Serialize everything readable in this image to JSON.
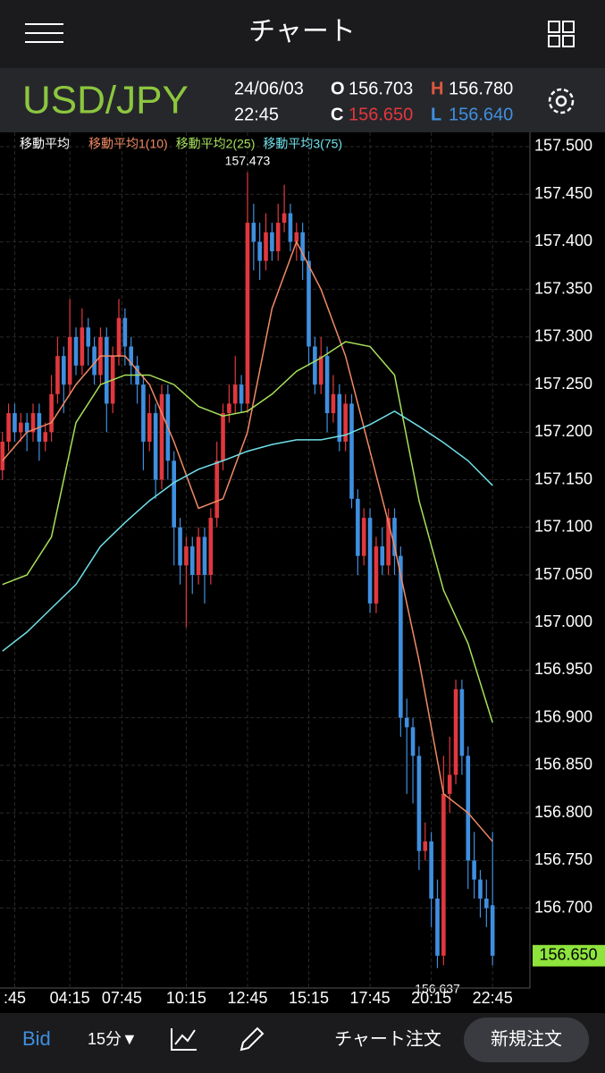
{
  "header": {
    "title": "チャート",
    "symbol": "USD/JPY",
    "date": "24/06/03",
    "time": "22:45",
    "o_label": "O",
    "o_value": "156.703",
    "h_label": "H",
    "h_value": "156.780",
    "c_label": "C",
    "c_value": "156.650",
    "l_label": "L",
    "l_value": "156.640"
  },
  "chart_data": {
    "type": "candlestick",
    "legend_title": "移動平均",
    "last_price_label": "156.650",
    "xlim": [
      -0.4,
      86.1
    ],
    "ylim": [
      156.616,
      157.515
    ],
    "xticks": [
      {
        "value": 2,
        "label": ":45"
      },
      {
        "value": 11,
        "label": "04:15"
      },
      {
        "value": 19.5,
        "label": "07:45"
      },
      {
        "value": 30,
        "label": "10:15"
      },
      {
        "value": 40,
        "label": "12:45"
      },
      {
        "value": 50,
        "label": "15:15"
      },
      {
        "value": 60,
        "label": "17:45"
      },
      {
        "value": 70,
        "label": "20:15"
      },
      {
        "value": 80,
        "label": "22:45"
      }
    ],
    "yticks": [
      {
        "value": 156.7,
        "label": "156.700"
      },
      {
        "value": 156.75,
        "label": "156.750"
      },
      {
        "value": 156.8,
        "label": "156.800"
      },
      {
        "value": 156.85,
        "label": "156.850"
      },
      {
        "value": 156.9,
        "label": "156.900"
      },
      {
        "value": 156.95,
        "label": "156.950"
      },
      {
        "value": 157,
        "label": "157.000"
      },
      {
        "value": 157.05,
        "label": "157.050"
      },
      {
        "value": 157.1,
        "label": "157.100"
      },
      {
        "value": 157.15,
        "label": "157.150"
      },
      {
        "value": 157.2,
        "label": "157.200"
      },
      {
        "value": 157.25,
        "label": "157.250"
      },
      {
        "value": 157.3,
        "label": "157.300"
      },
      {
        "value": 157.35,
        "label": "157.350"
      },
      {
        "value": 157.4,
        "label": "157.400"
      },
      {
        "value": 157.45,
        "label": "157.450"
      },
      {
        "value": 157.5,
        "label": "157.500"
      }
    ],
    "grid": true,
    "up_color": "#e0383e",
    "down_color": "#3f8fe0",
    "open": [
      157.16,
      157.19,
      157.22,
      157.2,
      157.21,
      157.2,
      157.22,
      157.19,
      157.2,
      157.24,
      157.28,
      157.25,
      157.3,
      157.27,
      157.31,
      157.29,
      157.26,
      157.3,
      157.23,
      157.28,
      157.32,
      157.29,
      157.27,
      157.25,
      157.19,
      157.22,
      157.15,
      157.24,
      157.17,
      157.1,
      157.06,
      157.08,
      157.05,
      157.09,
      157.05,
      157.11,
      157.17,
      157.22,
      157.23,
      157.25,
      157.23,
      157.42,
      157.4,
      157.38,
      157.41,
      157.39,
      157.42,
      157.43,
      157.4,
      157.41,
      157.38,
      157.29,
      157.25,
      157.28,
      157.22,
      157.24,
      157.19,
      157.23,
      157.13,
      157.07,
      157.11,
      157.02,
      157.08,
      157.06,
      157.11,
      157.07,
      156.9,
      156.89,
      156.86,
      156.76,
      156.77,
      156.71,
      156.65,
      156.82,
      156.84,
      156.93,
      156.86,
      156.75,
      156.73,
      156.71,
      156.703
    ],
    "high": [
      157.2,
      157.23,
      157.23,
      157.22,
      157.22,
      157.23,
      157.23,
      157.21,
      157.26,
      157.3,
      157.29,
      157.34,
      157.31,
      157.33,
      157.32,
      157.3,
      157.31,
      157.31,
      157.29,
      157.34,
      157.33,
      157.3,
      157.28,
      157.26,
      157.24,
      157.23,
      157.25,
      157.25,
      157.18,
      157.11,
      157.09,
      157.09,
      157.1,
      157.1,
      157.12,
      157.19,
      157.23,
      157.25,
      157.28,
      157.26,
      157.473,
      157.44,
      157.42,
      157.43,
      157.42,
      157.44,
      157.46,
      157.44,
      157.42,
      157.42,
      157.39,
      157.3,
      157.3,
      157.29,
      157.26,
      157.25,
      157.24,
      157.24,
      157.14,
      157.12,
      157.12,
      157.09,
      157.1,
      157.12,
      157.12,
      157.08,
      156.92,
      156.9,
      156.87,
      156.79,
      156.78,
      156.73,
      156.86,
      156.88,
      156.94,
      156.94,
      156.87,
      156.78,
      156.74,
      156.73,
      156.78
    ],
    "low": [
      157.15,
      157.18,
      157.19,
      157.19,
      157.18,
      157.19,
      157.17,
      157.18,
      157.19,
      157.23,
      157.22,
      157.24,
      157.26,
      157.26,
      157.27,
      157.25,
      157.25,
      157.2,
      157.22,
      157.27,
      157.27,
      157.25,
      157.23,
      157.16,
      157.18,
      157.13,
      157.14,
      157.15,
      157.06,
      157.04,
      156.995,
      157.03,
      157.04,
      157.02,
      157.04,
      157.1,
      157.16,
      157.21,
      157.22,
      157.22,
      157.22,
      157.37,
      157.36,
      157.37,
      157.38,
      157.38,
      157.41,
      157.39,
      157.38,
      157.36,
      157.27,
      157.24,
      157.24,
      157.2,
      157.21,
      157.18,
      157.18,
      157.12,
      157.05,
      157.06,
      157.01,
      157.01,
      157.05,
      157.05,
      157.05,
      156.88,
      156.82,
      156.81,
      156.74,
      156.75,
      156.68,
      156.637,
      156.64,
      156.8,
      156.83,
      156.84,
      156.72,
      156.71,
      156.69,
      156.68,
      156.64
    ],
    "close": [
      157.19,
      157.22,
      157.2,
      157.21,
      157.2,
      157.22,
      157.19,
      157.2,
      157.24,
      157.28,
      157.25,
      157.3,
      157.27,
      157.31,
      157.29,
      157.26,
      157.3,
      157.23,
      157.28,
      157.32,
      157.29,
      157.27,
      157.25,
      157.19,
      157.22,
      157.15,
      157.24,
      157.17,
      157.1,
      157.06,
      157.08,
      157.05,
      157.09,
      157.05,
      157.11,
      157.17,
      157.22,
      157.23,
      157.25,
      157.23,
      157.42,
      157.4,
      157.38,
      157.41,
      157.39,
      157.42,
      157.43,
      157.4,
      157.41,
      157.38,
      157.29,
      157.25,
      157.28,
      157.22,
      157.24,
      157.19,
      157.23,
      157.13,
      157.07,
      157.11,
      157.02,
      157.08,
      157.06,
      157.11,
      157.07,
      156.9,
      156.89,
      156.86,
      156.76,
      156.77,
      156.71,
      156.65,
      156.82,
      156.84,
      156.93,
      156.86,
      156.75,
      156.73,
      156.71,
      156.7,
      156.65
    ],
    "series": [
      {
        "name": "移動平均1(10)",
        "color": "#f08a64",
        "x": [
          0,
          4,
          8,
          12,
          16,
          20,
          24,
          28,
          32,
          36,
          40,
          44,
          48,
          52,
          56,
          60,
          64,
          68,
          72,
          76,
          80
        ],
        "values": [
          157.17,
          157.2,
          157.21,
          157.25,
          157.28,
          157.28,
          157.25,
          157.19,
          157.12,
          157.13,
          157.2,
          157.33,
          157.4,
          157.35,
          157.28,
          157.18,
          157.08,
          156.96,
          156.82,
          156.8,
          156.77
        ]
      },
      {
        "name": "移動平均2(25)",
        "color": "#a6e05a",
        "x": [
          0,
          4,
          8,
          12,
          16,
          20,
          24,
          28,
          32,
          36,
          40,
          44,
          48,
          52,
          56,
          60,
          64,
          68,
          72,
          76,
          80
        ],
        "values": [
          157.04,
          157.05,
          157.09,
          157.21,
          157.25,
          157.26,
          157.26,
          157.25,
          157.227,
          157.217,
          157.222,
          157.24,
          157.264,
          157.278,
          157.295,
          157.29,
          157.26,
          157.128,
          157.034,
          156.978,
          156.895
        ]
      },
      {
        "name": "移動平均3(75)",
        "color": "#6fe0e8",
        "x": [
          0,
          4,
          8,
          12,
          16,
          20,
          24,
          28,
          32,
          36,
          40,
          44,
          48,
          52,
          56,
          60,
          64,
          68,
          72,
          76,
          80
        ],
        "values": [
          156.97,
          156.99,
          157.015,
          157.04,
          157.08,
          157.105,
          157.128,
          157.147,
          157.161,
          157.17,
          157.18,
          157.187,
          157.192,
          157.192,
          157.197,
          157.208,
          157.222,
          157.206,
          157.189,
          157.17,
          157.144
        ]
      }
    ]
  },
  "footer": {
    "bid": "Bid",
    "interval": "15分▼",
    "chart_order": "チャート注文",
    "new_order": "新規注文"
  }
}
